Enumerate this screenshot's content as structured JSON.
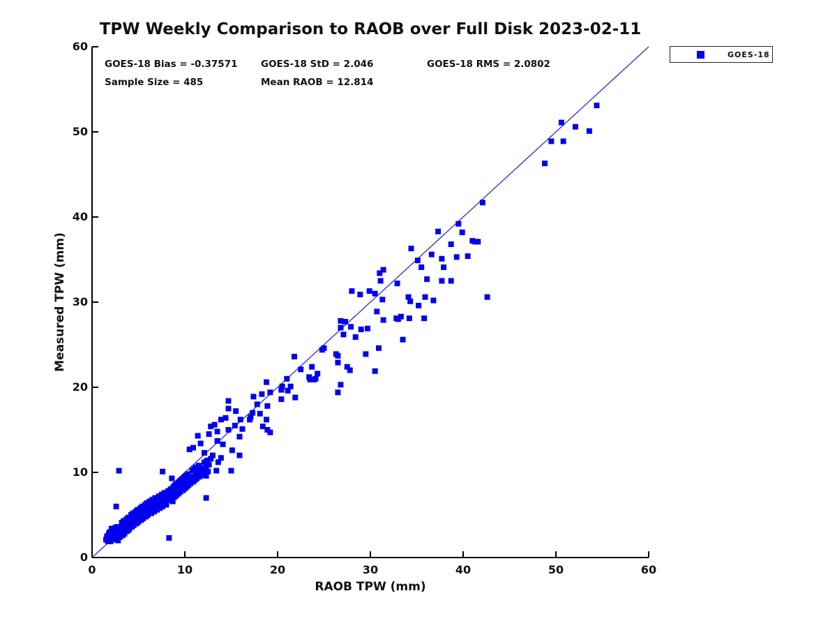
{
  "title": "TPW Weekly Comparison to RAOB over Full Disk 2023-02-11",
  "stats": {
    "bias": "GOES-18 Bias = -0.37571",
    "std": "GOES-18 StD = 2.046",
    "rms": "GOES-18 RMS = 2.0802",
    "sample_size": "Sample Size = 485",
    "mean_raob": "Mean RAOB = 12.814"
  },
  "legend": {
    "entries": [
      {
        "label": "GOES-18",
        "marker": "square",
        "color": "#0000ee"
      }
    ]
  },
  "colors": {
    "marker": "#0000ee",
    "line": "#2b2bd0",
    "axis": "#000000",
    "text": "#111111",
    "background": "#ffffff"
  },
  "chart_data": {
    "type": "scatter",
    "title": "TPW Weekly Comparison to RAOB over Full Disk 2023-02-11",
    "xlabel": "RAOB TPW (mm)",
    "ylabel": "Measured TPW (mm)",
    "xlim": [
      0,
      60
    ],
    "ylim": [
      0,
      60
    ],
    "xticks": [
      0,
      10,
      20,
      30,
      40,
      50,
      60
    ],
    "yticks": [
      0,
      10,
      20,
      30,
      40,
      50,
      60
    ],
    "grid": false,
    "legend_position": "outside-top-right",
    "identity_line": {
      "from": [
        0,
        0
      ],
      "to": [
        60,
        60
      ],
      "color": "#2b2bd0"
    },
    "annotations": [
      "GOES-18 Bias = -0.37571",
      "GOES-18 StD = 2.046",
      "GOES-18 RMS = 2.0802",
      "Sample Size = 485",
      "Mean RAOB = 12.814"
    ],
    "series": [
      {
        "name": "GOES-18",
        "marker": "square",
        "color": "#0000ee",
        "sample_size": 485,
        "points": [
          [
            1.5,
            2.1
          ],
          [
            1.6,
            2.5
          ],
          [
            1.7,
            1.9
          ],
          [
            1.8,
            2.8
          ],
          [
            1.8,
            2.2
          ],
          [
            1.9,
            3.0
          ],
          [
            2.0,
            2.4
          ],
          [
            2.0,
            1.9
          ],
          [
            2.1,
            2.9
          ],
          [
            2.1,
            3.4
          ],
          [
            2.2,
            2.1
          ],
          [
            2.2,
            2.6
          ],
          [
            2.3,
            3.2
          ],
          [
            2.3,
            2.4
          ],
          [
            2.4,
            2.9
          ],
          [
            2.4,
            2.1
          ],
          [
            2.5,
            3.5
          ],
          [
            2.5,
            2.6
          ],
          [
            2.6,
            3.0
          ],
          [
            2.6,
            6.0
          ],
          [
            2.7,
            3.6
          ],
          [
            2.7,
            2.8
          ],
          [
            2.8,
            2.0
          ],
          [
            2.8,
            3.2
          ],
          [
            2.9,
            2.6
          ],
          [
            2.9,
            10.2
          ],
          [
            3.0,
            3.0
          ],
          [
            3.0,
            2.4
          ],
          [
            3.1,
            3.5
          ],
          [
            3.1,
            2.8
          ],
          [
            3.2,
            4.1
          ],
          [
            3.2,
            3.2
          ],
          [
            3.3,
            2.6
          ],
          [
            3.3,
            3.7
          ],
          [
            3.4,
            3.1
          ],
          [
            3.4,
            4.3
          ],
          [
            3.5,
            3.5
          ],
          [
            3.5,
            2.8
          ],
          [
            3.6,
            4.0
          ],
          [
            3.6,
            3.3
          ],
          [
            3.7,
            4.5
          ],
          [
            3.7,
            3.7
          ],
          [
            3.8,
            3.1
          ],
          [
            3.8,
            4.2
          ],
          [
            3.9,
            3.5
          ],
          [
            3.9,
            4.7
          ],
          [
            4.0,
            4.0
          ],
          [
            4.0,
            3.3
          ],
          [
            4.1,
            4.4
          ],
          [
            4.1,
            3.8
          ],
          [
            4.2,
            5.0
          ],
          [
            4.2,
            4.2
          ],
          [
            4.3,
            3.6
          ],
          [
            4.3,
            4.6
          ],
          [
            4.4,
            4.0
          ],
          [
            4.4,
            5.2
          ],
          [
            4.5,
            4.4
          ],
          [
            4.5,
            3.8
          ],
          [
            4.6,
            4.9
          ],
          [
            4.6,
            4.2
          ],
          [
            4.7,
            5.4
          ],
          [
            4.7,
            4.6
          ],
          [
            4.8,
            4.0
          ],
          [
            4.8,
            5.1
          ],
          [
            4.9,
            4.4
          ],
          [
            4.9,
            5.6
          ],
          [
            5.0,
            4.9
          ],
          [
            5.0,
            4.2
          ],
          [
            5.1,
            5.3
          ],
          [
            5.1,
            4.6
          ],
          [
            5.2,
            5.8
          ],
          [
            5.2,
            5.1
          ],
          [
            5.3,
            4.4
          ],
          [
            5.3,
            5.5
          ],
          [
            5.4,
            4.9
          ],
          [
            5.4,
            6.0
          ],
          [
            5.5,
            5.3
          ],
          [
            5.5,
            4.6
          ],
          [
            5.6,
            5.7
          ],
          [
            5.6,
            5.0
          ],
          [
            5.7,
            6.2
          ],
          [
            5.7,
            5.5
          ],
          [
            5.8,
            4.8
          ],
          [
            5.8,
            5.9
          ],
          [
            5.9,
            5.3
          ],
          [
            5.9,
            6.4
          ],
          [
            6.0,
            5.7
          ],
          [
            6.0,
            5.0
          ],
          [
            6.1,
            6.1
          ],
          [
            6.2,
            5.5
          ],
          [
            6.2,
            6.6
          ],
          [
            6.3,
            5.9
          ],
          [
            6.4,
            5.2
          ],
          [
            6.4,
            6.3
          ],
          [
            6.5,
            5.7
          ],
          [
            6.5,
            6.8
          ],
          [
            6.6,
            6.1
          ],
          [
            6.7,
            5.4
          ],
          [
            6.7,
            6.5
          ],
          [
            6.8,
            5.9
          ],
          [
            6.8,
            7.0
          ],
          [
            6.9,
            6.3
          ],
          [
            7.0,
            5.6
          ],
          [
            7.0,
            6.7
          ],
          [
            7.1,
            6.1
          ],
          [
            7.2,
            7.2
          ],
          [
            7.2,
            6.5
          ],
          [
            7.3,
            5.8
          ],
          [
            7.4,
            6.9
          ],
          [
            7.4,
            6.3
          ],
          [
            7.5,
            7.4
          ],
          [
            7.5,
            6.7
          ],
          [
            7.6,
            6.0
          ],
          [
            7.6,
            10.1
          ],
          [
            7.7,
            7.1
          ],
          [
            7.7,
            6.5
          ],
          [
            7.8,
            7.6
          ],
          [
            7.9,
            6.9
          ],
          [
            8.0,
            6.2
          ],
          [
            8.0,
            7.3
          ],
          [
            8.1,
            6.7
          ],
          [
            8.2,
            7.8
          ],
          [
            8.2,
            7.1
          ],
          [
            8.3,
            2.3
          ],
          [
            8.4,
            7.5
          ],
          [
            8.5,
            6.9
          ],
          [
            8.5,
            8.0
          ],
          [
            8.6,
            7.3
          ],
          [
            8.6,
            9.3
          ],
          [
            8.7,
            6.6
          ],
          [
            8.8,
            7.7
          ],
          [
            8.8,
            8.3
          ],
          [
            8.9,
            7.1
          ],
          [
            9.0,
            7.9
          ],
          [
            9.0,
            8.6
          ],
          [
            9.1,
            7.3
          ],
          [
            9.2,
            8.1
          ],
          [
            9.3,
            8.8
          ],
          [
            9.3,
            7.5
          ],
          [
            9.4,
            8.3
          ],
          [
            9.5,
            9.0
          ],
          [
            9.5,
            7.7
          ],
          [
            9.6,
            8.5
          ],
          [
            9.7,
            9.2
          ],
          [
            9.8,
            7.9
          ],
          [
            9.8,
            8.7
          ],
          [
            9.9,
            9.4
          ],
          [
            10.0,
            8.1
          ],
          [
            10.0,
            8.9
          ],
          [
            10.1,
            9.6
          ],
          [
            10.2,
            8.3
          ],
          [
            10.2,
            9.1
          ],
          [
            10.3,
            9.8
          ],
          [
            10.4,
            8.5
          ],
          [
            10.5,
            9.3
          ],
          [
            10.5,
            12.7
          ],
          [
            10.6,
            8.7
          ],
          [
            10.7,
            9.5
          ],
          [
            10.8,
            10.2
          ],
          [
            10.9,
            8.9
          ],
          [
            10.9,
            12.9
          ],
          [
            11.0,
            10.4
          ],
          [
            11.1,
            9.1
          ],
          [
            11.2,
            9.9
          ],
          [
            11.2,
            10.6
          ],
          [
            11.3,
            9.3
          ],
          [
            11.4,
            10.1
          ],
          [
            11.4,
            14.3
          ],
          [
            11.5,
            10.8
          ],
          [
            11.6,
            9.5
          ],
          [
            11.7,
            10.3
          ],
          [
            11.7,
            13.4
          ],
          [
            11.9,
            9.7
          ],
          [
            12.0,
            10.5
          ],
          [
            12.1,
            11.2
          ],
          [
            12.1,
            12.3
          ],
          [
            12.2,
            9.9
          ],
          [
            12.3,
            10.7
          ],
          [
            12.3,
            7.0
          ],
          [
            12.3,
            9.6
          ],
          [
            12.4,
            11.4
          ],
          [
            12.5,
            10.1
          ],
          [
            12.6,
            10.9
          ],
          [
            12.6,
            14.5
          ],
          [
            12.8,
            11.6
          ],
          [
            12.8,
            15.4
          ],
          [
            13.0,
            12.0
          ],
          [
            13.2,
            15.6
          ],
          [
            13.4,
            10.2
          ],
          [
            13.5,
            13.7
          ],
          [
            13.5,
            14.8
          ],
          [
            13.6,
            11.2
          ],
          [
            13.9,
            16.2
          ],
          [
            13.9,
            11.7
          ],
          [
            14.1,
            13.3
          ],
          [
            14.4,
            16.4
          ],
          [
            14.7,
            18.4
          ],
          [
            14.7,
            17.5
          ],
          [
            14.7,
            15.0
          ],
          [
            15.0,
            10.2
          ],
          [
            15.1,
            12.6
          ],
          [
            15.4,
            15.5
          ],
          [
            15.5,
            17.2
          ],
          [
            15.9,
            14.2
          ],
          [
            15.9,
            12.0
          ],
          [
            16.0,
            16.2
          ],
          [
            16.2,
            15.1
          ],
          [
            17.0,
            16.2
          ],
          [
            17.1,
            16.5
          ],
          [
            17.3,
            17.0
          ],
          [
            17.4,
            18.9
          ],
          [
            17.8,
            18.0
          ],
          [
            18.1,
            16.9
          ],
          [
            18.3,
            19.2
          ],
          [
            18.4,
            15.4
          ],
          [
            18.8,
            20.6
          ],
          [
            18.8,
            16.2
          ],
          [
            18.9,
            17.8
          ],
          [
            18.9,
            15.0
          ],
          [
            19.2,
            19.4
          ],
          [
            19.2,
            14.7
          ],
          [
            20.4,
            18.6
          ],
          [
            20.4,
            19.7
          ],
          [
            20.5,
            20.1
          ],
          [
            21.0,
            21.0
          ],
          [
            21.1,
            19.6
          ],
          [
            21.4,
            20.1
          ],
          [
            21.8,
            23.6
          ],
          [
            21.9,
            18.8
          ],
          [
            22.5,
            22.1
          ],
          [
            23.4,
            21.2
          ],
          [
            23.5,
            20.9
          ],
          [
            23.7,
            22.4
          ],
          [
            23.9,
            20.9
          ],
          [
            24.1,
            21.0
          ],
          [
            24.3,
            21.6
          ],
          [
            24.8,
            24.4
          ],
          [
            25.0,
            24.6
          ],
          [
            26.3,
            23.9
          ],
          [
            26.5,
            19.4
          ],
          [
            26.5,
            22.9
          ],
          [
            26.5,
            23.7
          ],
          [
            26.8,
            20.3
          ],
          [
            26.8,
            27.0
          ],
          [
            26.8,
            27.8
          ],
          [
            27.1,
            26.2
          ],
          [
            27.3,
            27.7
          ],
          [
            27.5,
            22.4
          ],
          [
            27.8,
            22.0
          ],
          [
            27.9,
            27.1
          ],
          [
            28.0,
            31.3
          ],
          [
            28.4,
            25.9
          ],
          [
            28.9,
            30.9
          ],
          [
            29.0,
            26.8
          ],
          [
            29.5,
            23.9
          ],
          [
            29.7,
            26.9
          ],
          [
            29.9,
            31.3
          ],
          [
            30.5,
            31.0
          ],
          [
            30.5,
            21.9
          ],
          [
            30.7,
            28.9
          ],
          [
            30.9,
            24.6
          ],
          [
            31.1,
            32.5
          ],
          [
            31.3,
            30.3
          ],
          [
            31.4,
            27.9
          ],
          [
            31.0,
            33.4
          ],
          [
            31.4,
            33.8
          ],
          [
            32.8,
            28.1
          ],
          [
            32.9,
            32.2
          ],
          [
            33.0,
            28.0
          ],
          [
            33.3,
            28.3
          ],
          [
            33.5,
            25.6
          ],
          [
            34.1,
            30.6
          ],
          [
            34.2,
            28.1
          ],
          [
            34.3,
            30.1
          ],
          [
            34.4,
            36.3
          ],
          [
            35.1,
            34.9
          ],
          [
            35.2,
            29.6
          ],
          [
            35.5,
            34.1
          ],
          [
            35.8,
            28.1
          ],
          [
            35.9,
            30.6
          ],
          [
            36.1,
            32.7
          ],
          [
            36.6,
            35.6
          ],
          [
            36.8,
            30.2
          ],
          [
            37.3,
            38.3
          ],
          [
            37.7,
            32.5
          ],
          [
            37.7,
            35.1
          ],
          [
            37.9,
            34.1
          ],
          [
            38.7,
            32.5
          ],
          [
            38.7,
            36.8
          ],
          [
            39.3,
            35.3
          ],
          [
            39.5,
            39.2
          ],
          [
            39.9,
            38.2
          ],
          [
            40.5,
            35.4
          ],
          [
            41.0,
            37.2
          ],
          [
            41.3,
            37.1
          ],
          [
            41.6,
            37.1
          ],
          [
            42.1,
            41.7
          ],
          [
            42.6,
            30.6
          ],
          [
            48.8,
            46.3
          ],
          [
            49.5,
            48.9
          ],
          [
            50.6,
            51.1
          ],
          [
            50.8,
            48.9
          ],
          [
            52.1,
            50.6
          ],
          [
            53.6,
            50.1
          ],
          [
            54.4,
            53.1
          ]
        ]
      }
    ]
  }
}
